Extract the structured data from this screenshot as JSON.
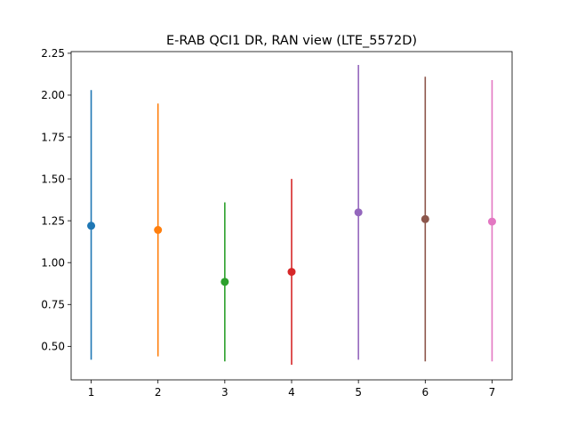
{
  "chart_data": {
    "type": "errorbar",
    "title": "E-RAB QCI1 DR, RAN view (LTE_5572D)",
    "xlabel": "",
    "ylabel": "",
    "xlim": [
      0.7,
      7.3
    ],
    "ylim": [
      0.3,
      2.26
    ],
    "x_ticks": [
      1,
      2,
      3,
      4,
      5,
      6,
      7
    ],
    "y_ticks": [
      0.5,
      0.75,
      1.0,
      1.25,
      1.5,
      1.75,
      2.0,
      2.25
    ],
    "y_tick_labels": [
      "0.50",
      "0.75",
      "1.00",
      "1.25",
      "1.50",
      "1.75",
      "2.00",
      "2.25"
    ],
    "grid": false,
    "points": [
      {
        "x": 1,
        "y": 1.22,
        "low": 0.42,
        "high": 2.03,
        "color": "#1f77b4"
      },
      {
        "x": 2,
        "y": 1.195,
        "low": 0.44,
        "high": 1.95,
        "color": "#ff7f0e"
      },
      {
        "x": 3,
        "y": 0.885,
        "low": 0.41,
        "high": 1.36,
        "color": "#2ca02c"
      },
      {
        "x": 4,
        "y": 0.945,
        "low": 0.39,
        "high": 1.5,
        "color": "#d62728"
      },
      {
        "x": 5,
        "y": 1.3,
        "low": 0.42,
        "high": 2.18,
        "color": "#9467bd"
      },
      {
        "x": 6,
        "y": 1.26,
        "low": 0.41,
        "high": 2.11,
        "color": "#8c564b"
      },
      {
        "x": 7,
        "y": 1.245,
        "low": 0.41,
        "high": 2.09,
        "color": "#e377c2"
      }
    ]
  }
}
